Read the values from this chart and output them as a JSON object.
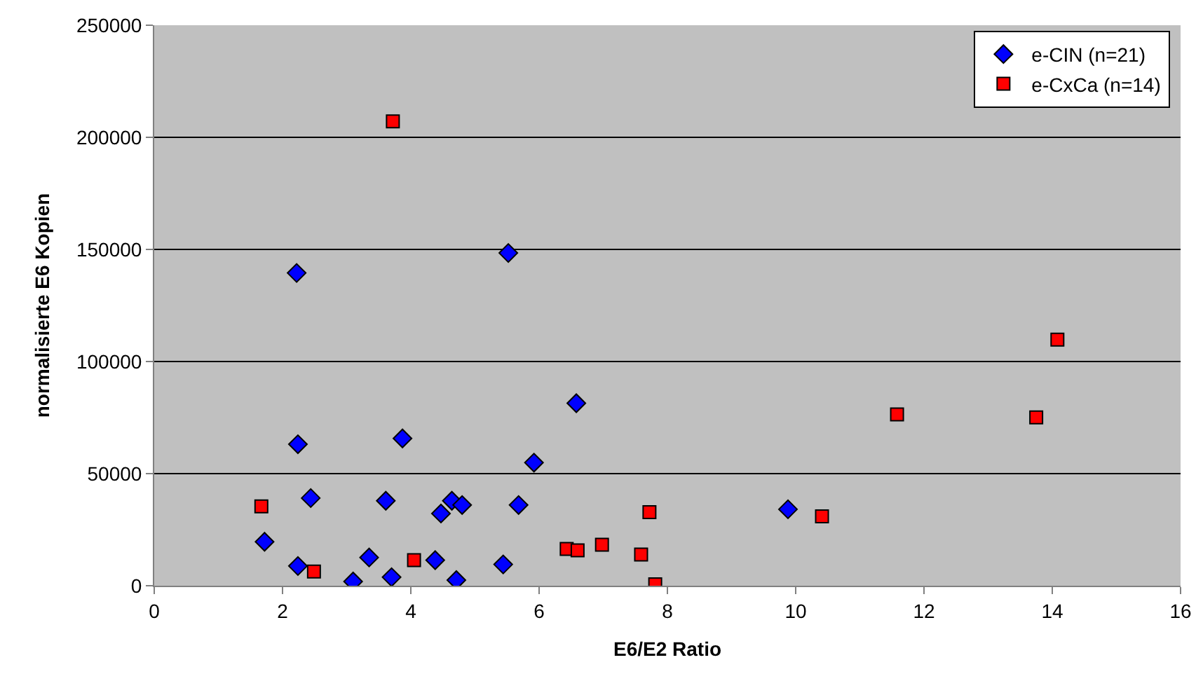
{
  "chart_data": {
    "type": "scatter",
    "xlabel": "E6/E2 Ratio",
    "ylabel": "normalisierte E6 Kopien",
    "xlim": [
      0,
      16
    ],
    "xticks": [
      0,
      2,
      4,
      6,
      8,
      10,
      12,
      14,
      16
    ],
    "ylim": [
      0,
      250000
    ],
    "yticks": [
      0,
      50000,
      100000,
      150000,
      200000,
      250000
    ],
    "grid": "y",
    "legend": "top right",
    "series": [
      {
        "name": "e-CIN (n=21)",
        "color": "#0000ff",
        "marker": "diamond",
        "x": [
          2.22,
          5.52,
          2.24,
          3.87,
          5.92,
          6.58,
          2.44,
          3.61,
          4.47,
          4.64,
          4.8,
          5.68,
          1.72,
          2.24,
          3.35,
          3.1,
          3.7,
          4.38,
          4.71,
          5.44,
          9.88
        ],
        "values": [
          139500,
          148400,
          63100,
          65700,
          54900,
          81400,
          39100,
          37900,
          32200,
          37900,
          36000,
          36000,
          19600,
          8800,
          12600,
          1900,
          3800,
          11400,
          2500,
          9500,
          34100
        ]
      },
      {
        "name": "e-CxCa (n=14)",
        "color": "#ff0000",
        "marker": "square",
        "x": [
          3.72,
          1.67,
          2.49,
          4.05,
          6.43,
          6.6,
          6.98,
          7.72,
          7.59,
          7.81,
          10.41,
          11.58,
          13.75,
          14.08
        ],
        "values": [
          207100,
          35400,
          6300,
          11400,
          16400,
          15800,
          18300,
          32800,
          13900,
          600,
          30900,
          76400,
          75100,
          109800
        ]
      }
    ]
  }
}
